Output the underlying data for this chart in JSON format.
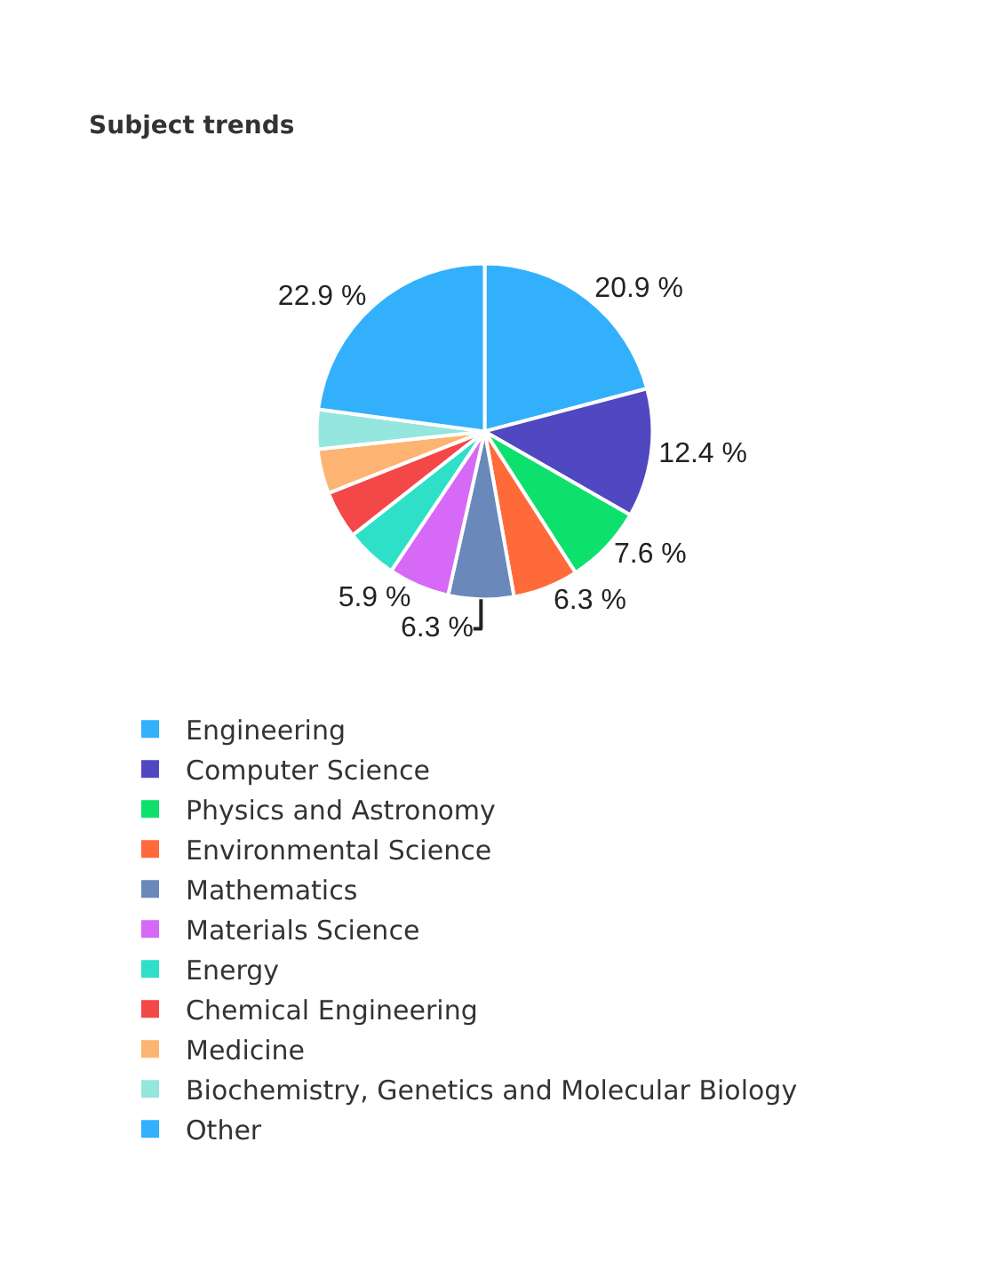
{
  "chart_data": {
    "type": "pie",
    "title": "Subject trends",
    "categories": [
      "Engineering",
      "Computer Science",
      "Physics and Astronomy",
      "Environmental Science",
      "Mathematics",
      "Materials Science",
      "Energy",
      "Chemical Engineering",
      "Medicine",
      "Biochemistry, Genetics and Molecular Biology",
      "Other"
    ],
    "values": [
      20.9,
      12.4,
      7.6,
      6.3,
      6.3,
      5.9,
      5.0,
      4.6,
      4.3,
      3.8,
      22.9
    ],
    "value_labels": [
      "20.9 %",
      "12.4 %",
      "7.6 %",
      "6.3 %",
      "6.3 %",
      "5.9 %",
      null,
      null,
      null,
      null,
      "22.9 %"
    ],
    "colors": [
      "#33b0fb",
      "#5048c0",
      "#0ee06e",
      "#ff6a3a",
      "#6b88bb",
      "#d66af7",
      "#2ee0c8",
      "#f44848",
      "#fdb472",
      "#95e6de",
      "#33b0fb"
    ],
    "legend": "bottom left"
  }
}
